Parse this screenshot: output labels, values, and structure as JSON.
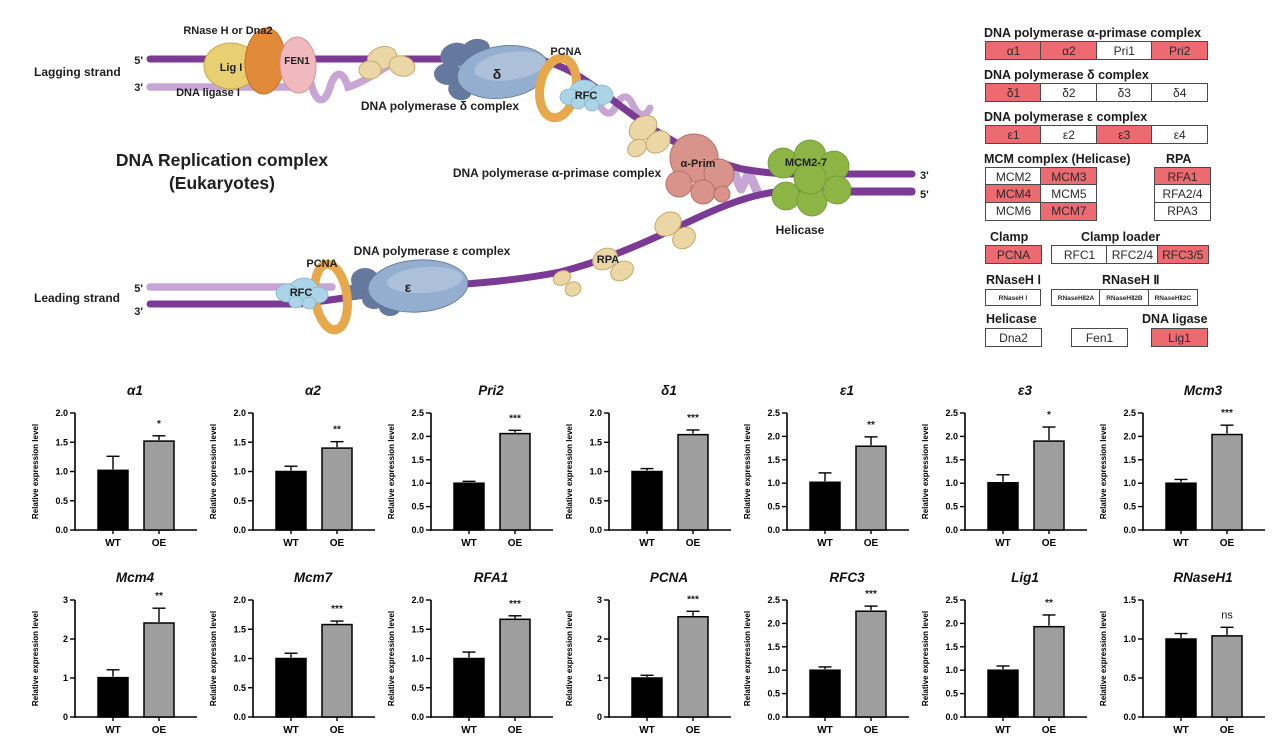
{
  "colors": {
    "highlight_red": "#ec6a70",
    "bar_wt": "#000000",
    "bar_oe": "#9e9e9e",
    "strand_dark": "#7b3a96",
    "strand_light": "#c7a6d6"
  },
  "diagram": {
    "title": [
      "DNA Replication complex",
      "(Eukaryotes)"
    ],
    "labels": {
      "lagging_strand": "Lagging strand",
      "leading_strand": "Leading strand",
      "rnase_or_dna2": "RNase H or Dna2",
      "lig1_blob": "Lig I",
      "fen1_blob": "FEN1",
      "dna_ligase_1": "DNA ligase I",
      "pol_delta_complex": "DNA polymerase δ complex",
      "pcna_top": "PCNA",
      "rfc_top": "RFC",
      "delta": "δ",
      "pol_alpha_complex": "DNA polymerase α-primase complex",
      "alpha_prim": "α-Prim",
      "mcm2_7": "MCM2-7",
      "helicase": "Helicase",
      "rpa": "RPA",
      "pol_epsilon_complex": "DNA polymerase ε complex",
      "pcna_bottom": "PCNA",
      "rfc_bottom": "RFC",
      "epsilon": "ε",
      "five_top": "5'",
      "three_top": "3'",
      "three_right": "3'",
      "five_right": "5'",
      "five_bottom": "5'",
      "three_bottom": "3'"
    }
  },
  "gene_table": {
    "groups": [
      {
        "header": "DNA polymerase α-primase complex",
        "cells": [
          {
            "label": "α1",
            "highlighted": true
          },
          {
            "label": "α2",
            "highlighted": true
          },
          {
            "label": "Pri1",
            "highlighted": false
          },
          {
            "label": "Pri2",
            "highlighted": true
          }
        ]
      },
      {
        "header": "DNA polymerase δ complex",
        "cells": [
          {
            "label": "δ1",
            "highlighted": true
          },
          {
            "label": "δ2",
            "highlighted": false
          },
          {
            "label": "δ3",
            "highlighted": false
          },
          {
            "label": "δ4",
            "highlighted": false
          }
        ]
      },
      {
        "header": "DNA polymerase ε complex",
        "cells": [
          {
            "label": "ε1",
            "highlighted": true
          },
          {
            "label": "ε2",
            "highlighted": false
          },
          {
            "label": "ε3",
            "highlighted": true
          },
          {
            "label": "ε4",
            "highlighted": false
          }
        ]
      },
      {
        "header_left": "MCM complex  (Helicase)",
        "header_right": "RPA",
        "mcm_cells": [
          {
            "label": "MCM2",
            "highlighted": false
          },
          {
            "label": "MCM3",
            "highlighted": true
          },
          {
            "label": "MCM4",
            "highlighted": true
          },
          {
            "label": "MCM5",
            "highlighted": false
          },
          {
            "label": "MCM6",
            "highlighted": false
          },
          {
            "label": "MCM7",
            "highlighted": true
          }
        ],
        "rpa_cells": [
          {
            "label": "RFA1",
            "highlighted": true
          },
          {
            "label": "RFA2/4",
            "highlighted": false
          },
          {
            "label": "RPA3",
            "highlighted": false
          }
        ]
      },
      {
        "header_left": "Clamp",
        "header_right": "Clamp loader",
        "clamp_cell": {
          "label": "PCNA",
          "highlighted": true
        },
        "loader_cells": [
          {
            "label": "RFC1",
            "highlighted": false
          },
          {
            "label": "RFC2/4",
            "highlighted": false
          },
          {
            "label": "RFC3/5",
            "highlighted": true
          }
        ]
      },
      {
        "header_left": "RNaseH Ⅰ",
        "header_right": "RNaseH Ⅱ",
        "rnh1_cell": {
          "label": "RNaseH Ⅰ",
          "highlighted": false
        },
        "rnh2_cells": [
          {
            "label": "RNaseHⅡ2A",
            "highlighted": false
          },
          {
            "label": "RNaseHⅡ2B",
            "highlighted": false
          },
          {
            "label": "RNaseHⅡ2C",
            "highlighted": false
          }
        ]
      },
      {
        "header_left": "Helicase",
        "header_right": "DNA ligase",
        "cells": [
          {
            "label": "Dna2",
            "highlighted": false
          },
          {
            "label": "Fen1",
            "highlighted": false
          },
          {
            "label": "Lig1",
            "highlighted": true
          }
        ]
      }
    ]
  },
  "chart_data": [
    {
      "type": "bar",
      "title": "α1",
      "categories": [
        "WT",
        "OE"
      ],
      "values": [
        1.02,
        1.52
      ],
      "errors": [
        0.24,
        0.09
      ],
      "significance": "*",
      "ylim": [
        0,
        2.0
      ],
      "yticks": [
        "0.0",
        "0.5",
        "1.0",
        "1.5",
        "2.0"
      ],
      "ylabel": "Relative expression level"
    },
    {
      "type": "bar",
      "title": "α2",
      "categories": [
        "WT",
        "OE"
      ],
      "values": [
        1.0,
        1.4
      ],
      "errors": [
        0.09,
        0.11
      ],
      "significance": "**",
      "ylim": [
        0,
        2.0
      ],
      "yticks": [
        "0.0",
        "0.5",
        "1.0",
        "1.5",
        "2.0"
      ],
      "ylabel": "Relative expression level"
    },
    {
      "type": "bar",
      "title": "Pri2",
      "categories": [
        "WT",
        "OE"
      ],
      "values": [
        1.0,
        2.06
      ],
      "errors": [
        0.04,
        0.07
      ],
      "significance": "***",
      "ylim": [
        0,
        2.5
      ],
      "yticks": [
        "0.0",
        "0.5",
        "1.0",
        "1.5",
        "2.0",
        "2.5"
      ],
      "ylabel": "Relative expression level"
    },
    {
      "type": "bar",
      "title": "δ1",
      "categories": [
        "WT",
        "OE"
      ],
      "values": [
        1.0,
        1.63
      ],
      "errors": [
        0.05,
        0.08
      ],
      "significance": "***",
      "ylim": [
        0,
        2.0
      ],
      "yticks": [
        "0.0",
        "0.5",
        "1.0",
        "1.5",
        "2.0"
      ],
      "ylabel": "Relative expression level"
    },
    {
      "type": "bar",
      "title": "ε1",
      "categories": [
        "WT",
        "OE"
      ],
      "values": [
        1.02,
        1.79
      ],
      "errors": [
        0.2,
        0.2
      ],
      "significance": "**",
      "ylim": [
        0,
        2.5
      ],
      "yticks": [
        "0.0",
        "0.5",
        "1.0",
        "1.5",
        "2.0",
        "2.5"
      ],
      "ylabel": "Relative expression level"
    },
    {
      "type": "bar",
      "title": "ε3",
      "categories": [
        "WT",
        "OE"
      ],
      "values": [
        1.01,
        1.9
      ],
      "errors": [
        0.17,
        0.3
      ],
      "significance": "*",
      "ylim": [
        0,
        2.5
      ],
      "yticks": [
        "0.0",
        "0.5",
        "1.0",
        "1.5",
        "2.0",
        "2.5"
      ],
      "ylabel": "Relative expression level"
    },
    {
      "type": "bar",
      "title": "Mcm3",
      "categories": [
        "WT",
        "OE"
      ],
      "values": [
        1.0,
        2.04
      ],
      "errors": [
        0.08,
        0.2
      ],
      "significance": "***",
      "ylim": [
        0,
        2.5
      ],
      "yticks": [
        "0.0",
        "0.5",
        "1.0",
        "1.5",
        "2.0",
        "2.5"
      ],
      "ylabel": "Relative expression level"
    },
    {
      "type": "bar",
      "title": "Mcm4",
      "categories": [
        "WT",
        "OE"
      ],
      "values": [
        1.01,
        2.41
      ],
      "errors": [
        0.2,
        0.38
      ],
      "significance": "**",
      "ylim": [
        0,
        3
      ],
      "yticks": [
        "0",
        "1",
        "2",
        "3"
      ],
      "ylabel": "Relative expression level"
    },
    {
      "type": "bar",
      "title": "Mcm7",
      "categories": [
        "WT",
        "OE"
      ],
      "values": [
        1.0,
        1.58
      ],
      "errors": [
        0.09,
        0.06
      ],
      "significance": "***",
      "ylim": [
        0,
        2.0
      ],
      "yticks": [
        "0.0",
        "0.5",
        "1.0",
        "1.5",
        "2.0"
      ],
      "ylabel": "Relative expression level"
    },
    {
      "type": "bar",
      "title": "RFA1",
      "categories": [
        "WT",
        "OE"
      ],
      "values": [
        1.0,
        1.67
      ],
      "errors": [
        0.11,
        0.06
      ],
      "significance": "***",
      "ylim": [
        0,
        2.0
      ],
      "yticks": [
        "0.0",
        "0.5",
        "1.0",
        "1.5",
        "2.0"
      ],
      "ylabel": "Relative expression level"
    },
    {
      "type": "bar",
      "title": "PCNA",
      "categories": [
        "WT",
        "OE"
      ],
      "values": [
        1.0,
        2.57
      ],
      "errors": [
        0.07,
        0.14
      ],
      "significance": "***",
      "ylim": [
        0,
        3
      ],
      "yticks": [
        "0",
        "1",
        "2",
        "3"
      ],
      "ylabel": "Relative expression level"
    },
    {
      "type": "bar",
      "title": "RFC3",
      "categories": [
        "WT",
        "OE"
      ],
      "values": [
        1.0,
        2.26
      ],
      "errors": [
        0.07,
        0.11
      ],
      "significance": "***",
      "ylim": [
        0,
        2.5
      ],
      "yticks": [
        "0.0",
        "0.5",
        "1.0",
        "1.5",
        "2.0",
        "2.5"
      ],
      "ylabel": "Relative expression level"
    },
    {
      "type": "bar",
      "title": "Lig1",
      "categories": [
        "WT",
        "OE"
      ],
      "values": [
        1.0,
        1.93
      ],
      "errors": [
        0.09,
        0.25
      ],
      "significance": "**",
      "ylim": [
        0,
        2.5
      ],
      "yticks": [
        "0.0",
        "0.5",
        "1.0",
        "1.5",
        "2.0",
        "2.5"
      ],
      "ylabel": "Relative expression level"
    },
    {
      "type": "bar",
      "title": "RNaseH1",
      "categories": [
        "WT",
        "OE"
      ],
      "values": [
        1.0,
        1.04
      ],
      "errors": [
        0.07,
        0.11
      ],
      "significance": "ns",
      "ylim": [
        0,
        1.5
      ],
      "yticks": [
        "0.0",
        "0.5",
        "1.0",
        "1.5"
      ],
      "ylabel": "Relative expression level"
    }
  ]
}
